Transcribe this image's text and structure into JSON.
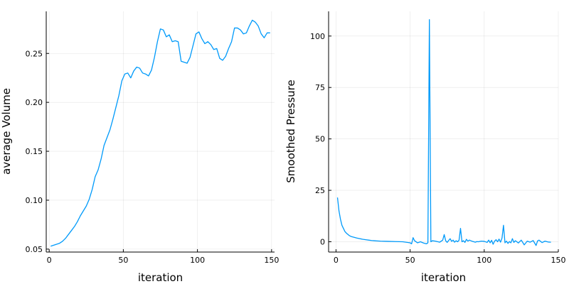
{
  "chart_data": [
    {
      "type": "line",
      "xlabel": "iteration",
      "ylabel": "average Volume",
      "xlim": [
        -2,
        152
      ],
      "ylim": [
        0.047,
        0.293
      ],
      "xticks": [
        0,
        50,
        100,
        150
      ],
      "xtick_labels": [
        "0",
        "50",
        "100",
        "150"
      ],
      "yticks": [
        0.05,
        0.1,
        0.15,
        0.2,
        0.25
      ],
      "ytick_labels": [
        "0.05",
        "0.10",
        "0.15",
        "0.20",
        "0.25"
      ],
      "grid": true,
      "series": [
        {
          "color": "#009AFA",
          "x": [
            1,
            3,
            5,
            7,
            9,
            11,
            13,
            15,
            17,
            19,
            21,
            23,
            25,
            27,
            29,
            31,
            33,
            35,
            37,
            39,
            41,
            43,
            45,
            47,
            49,
            51,
            53,
            55,
            57,
            59,
            61,
            63,
            65,
            67,
            69,
            71,
            73,
            75,
            77,
            79,
            81,
            83,
            85,
            87,
            89,
            91,
            93,
            95,
            97,
            99,
            101,
            103,
            105,
            107,
            109,
            111,
            113,
            115,
            117,
            119,
            121,
            123,
            125,
            127,
            129,
            131,
            133,
            135,
            137,
            139,
            141,
            143,
            145,
            147,
            149
          ],
          "y": [
            0.053,
            0.054,
            0.055,
            0.056,
            0.058,
            0.061,
            0.065,
            0.069,
            0.073,
            0.078,
            0.084,
            0.089,
            0.094,
            0.101,
            0.111,
            0.124,
            0.131,
            0.142,
            0.156,
            0.164,
            0.172,
            0.183,
            0.195,
            0.207,
            0.222,
            0.229,
            0.23,
            0.225,
            0.232,
            0.236,
            0.235,
            0.23,
            0.229,
            0.227,
            0.233,
            0.246,
            0.262,
            0.275,
            0.274,
            0.267,
            0.269,
            0.262,
            0.263,
            0.262,
            0.242,
            0.241,
            0.24,
            0.246,
            0.258,
            0.27,
            0.272,
            0.265,
            0.26,
            0.262,
            0.259,
            0.254,
            0.255,
            0.245,
            0.243,
            0.247,
            0.255,
            0.262,
            0.276,
            0.276,
            0.274,
            0.27,
            0.271,
            0.278,
            0.284,
            0.282,
            0.278,
            0.27,
            0.266,
            0.271,
            0.271
          ]
        }
      ]
    },
    {
      "type": "line",
      "xlabel": "iteration",
      "ylabel": "Smoothed Pressure",
      "xlim": [
        -5,
        150
      ],
      "ylim": [
        -5,
        112
      ],
      "xticks": [
        0,
        50,
        100,
        150
      ],
      "xtick_labels": [
        "0",
        "50",
        "100",
        "150"
      ],
      "yticks": [
        0,
        25,
        50,
        75,
        100
      ],
      "ytick_labels": [
        "0",
        "25",
        "50",
        "75",
        "100"
      ],
      "grid": true,
      "series": [
        {
          "color": "#009AFA",
          "x": [
            1,
            2,
            3,
            4,
            5,
            6,
            7,
            8,
            9,
            10,
            12,
            14,
            16,
            18,
            20,
            22,
            24,
            26,
            28,
            30,
            35,
            40,
            45,
            48,
            50,
            51,
            52,
            53,
            55,
            57,
            59,
            60,
            61,
            62,
            63,
            64,
            65,
            67,
            70,
            72,
            73,
            74,
            75,
            77,
            78,
            79,
            80,
            81,
            82,
            83,
            84,
            85,
            86,
            87,
            88,
            89,
            90,
            92,
            94,
            95,
            96,
            98,
            100,
            102,
            103,
            104,
            105,
            106,
            107,
            108,
            109,
            110,
            111,
            112,
            113,
            114,
            115,
            116,
            117,
            118,
            119,
            120,
            121,
            122,
            123,
            125,
            127,
            129,
            131,
            133,
            135,
            136,
            137,
            139,
            141,
            143,
            145
          ],
          "y": [
            21.5,
            15,
            11,
            8,
            6.5,
            5,
            4.2,
            3.6,
            3,
            2.6,
            2.2,
            1.8,
            1.5,
            1.2,
            1,
            0.8,
            0.6,
            0.5,
            0.4,
            0.3,
            0.2,
            0.1,
            0,
            -0.3,
            -0.5,
            -1,
            2,
            0.5,
            -0.5,
            0,
            -0.6,
            -0.8,
            -1,
            -0.5,
            108,
            0,
            0.5,
            0.3,
            -0.2,
            0.8,
            3.5,
            0.5,
            -0.3,
            1.5,
            0.2,
            0.8,
            -0.2,
            0.5,
            0,
            0.7,
            6.5,
            0,
            0.5,
            -0.3,
            1.2,
            0.3,
            0.8,
            0.2,
            -0.2,
            0.1,
            0,
            0.3,
            0.2,
            -0.3,
            0.8,
            -0.5,
            0.7,
            -1.2,
            0.3,
            1,
            0,
            1.3,
            -0.2,
            1.8,
            8,
            -0.5,
            0.3,
            -0.8,
            0.1,
            -0.5,
            1.5,
            -0.3,
            0.5,
            0,
            -0.6,
            0.8,
            -1.5,
            0.3,
            -0.2,
            0.6,
            -1.8,
            0.4,
            0.8,
            -0.4,
            0.3,
            -0.1,
            -0.2
          ]
        }
      ]
    }
  ]
}
